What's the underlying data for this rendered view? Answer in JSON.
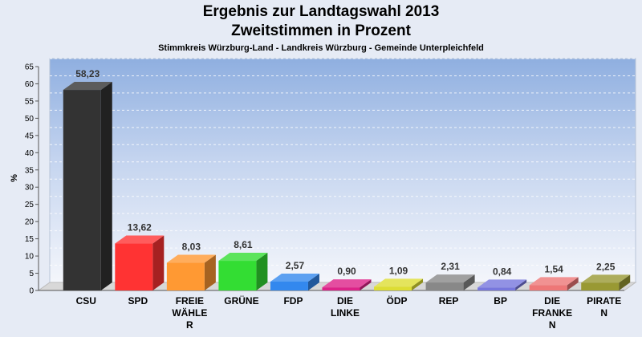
{
  "chart_data": {
    "type": "bar",
    "title": "Ergebnis zur Landtagswahl 2013",
    "subtitle": "Zweitstimmen in Prozent",
    "subsubtitle": "Stimmkreis Würzburg-Land - Landkreis Würzburg - Gemeinde Unterpleichfeld",
    "ylabel": "%",
    "ylim": [
      0,
      65
    ],
    "yticks": [
      0,
      5,
      10,
      15,
      20,
      25,
      30,
      35,
      40,
      45,
      50,
      55,
      60,
      65
    ],
    "categories": [
      [
        "CSU"
      ],
      [
        "SPD"
      ],
      [
        "FREIE",
        "WÄHLE",
        "R"
      ],
      [
        "GRÜNE"
      ],
      [
        "FDP"
      ],
      [
        "DIE",
        "LINKE"
      ],
      [
        "ÖDP"
      ],
      [
        "REP"
      ],
      [
        "BP"
      ],
      [
        "DIE",
        "FRANKE",
        "N"
      ],
      [
        "PIRATE",
        "N"
      ]
    ],
    "values": [
      58.23,
      13.62,
      8.03,
      8.61,
      2.57,
      0.9,
      1.09,
      2.31,
      0.84,
      1.54,
      2.25
    ],
    "value_labels": [
      "58,23",
      "13,62",
      "8,03",
      "8,61",
      "2,57",
      "0,90",
      "1,09",
      "2,31",
      "0,84",
      "1,54",
      "2,25"
    ],
    "colors": [
      "#333333",
      "#ff3333",
      "#ff9933",
      "#33dd33",
      "#3388ee",
      "#dd2288",
      "#dddd33",
      "#888888",
      "#7777dd",
      "#ee7777",
      "#999933"
    ],
    "grid": true
  }
}
